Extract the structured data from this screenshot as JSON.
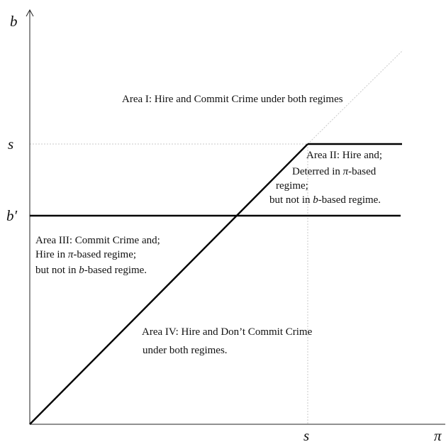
{
  "diagram": {
    "axes": {
      "y_label": "b",
      "x_label": "π"
    },
    "ticks": {
      "y_s": "s",
      "y_bprime": "b′",
      "x_s": "s"
    },
    "areas": {
      "area1": {
        "line1": "Area I: Hire  and Commit Crime  under both regimes"
      },
      "area2": {
        "line1": "Area II: Hire  and;",
        "line2_prefix": "Deterred  in ",
        "line2_symbol": "π",
        "line2_suffix": "-based",
        "line3": "regime;",
        "line4_prefix": "but not in ",
        "line4_symbol": "b",
        "line4_suffix": "-based regime."
      },
      "area3": {
        "line1": "Area III: Commit Crime  and;",
        "line2_prefix": "Hire  in ",
        "line2_symbol": "π",
        "line2_suffix": "-based regime;",
        "line3_prefix": "but not in ",
        "line3_symbol": "b",
        "line3_suffix": "-based regime."
      },
      "area4": {
        "line1": "Area IV: Hire  and Don’t Commit Crime",
        "line2": "under both regimes."
      }
    }
  }
}
